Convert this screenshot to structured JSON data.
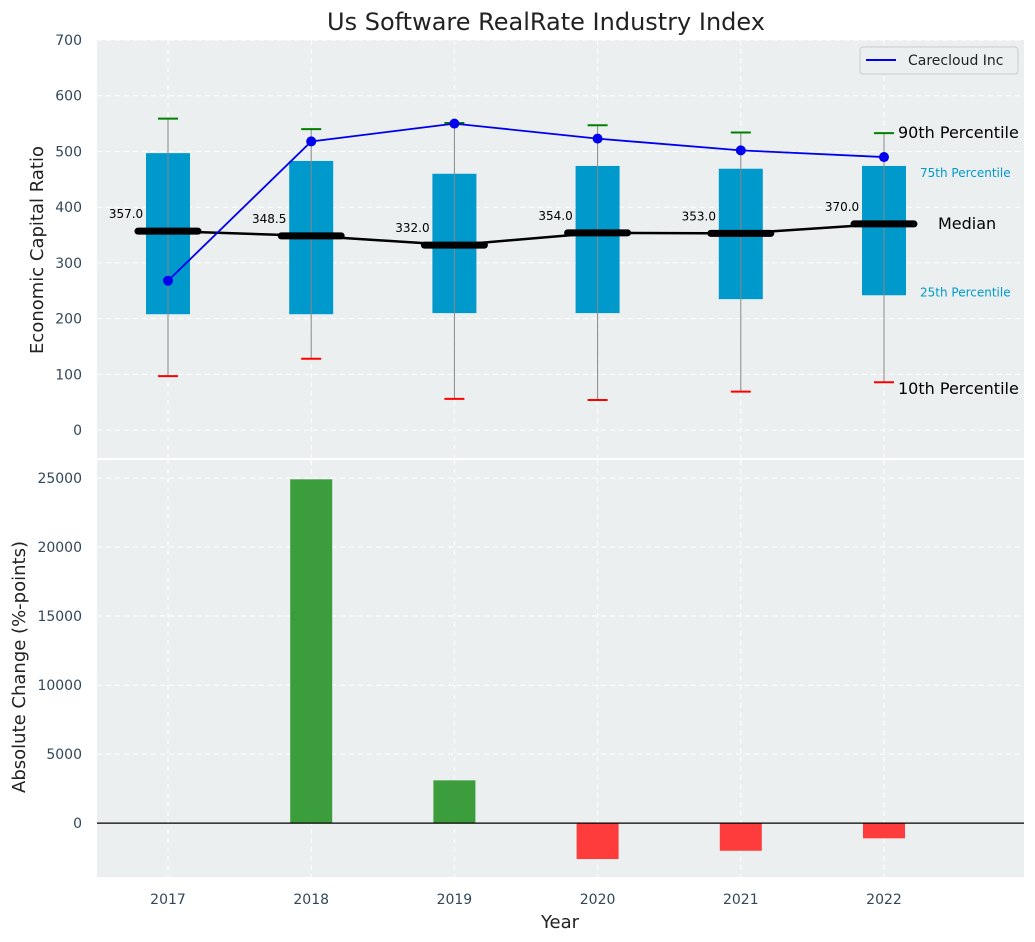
{
  "chart_data": [
    {
      "type": "box",
      "title": "Us Software RealRate Industry Index",
      "ylabel": "Economic Capital Ratio",
      "xlabel": "",
      "categories": [
        "2017",
        "2018",
        "2019",
        "2020",
        "2021",
        "2022"
      ],
      "ylim": [
        -50,
        700
      ],
      "yticks": [
        0,
        100,
        200,
        300,
        400,
        500,
        600,
        700
      ],
      "grid": true,
      "legend_position": "top-right",
      "percentiles": {
        "p10": [
          97,
          128,
          56,
          54,
          69,
          86
        ],
        "p25": [
          208,
          208,
          210,
          210,
          235,
          242
        ],
        "median": [
          357.0,
          348.5,
          332.0,
          354.0,
          353.0,
          370.0
        ],
        "p75": [
          497,
          483,
          460,
          474,
          469,
          474
        ],
        "p90": [
          559,
          540,
          551,
          547,
          534,
          533
        ]
      },
      "median_labels": [
        "357.0",
        "348.5",
        "332.0",
        "354.0",
        "353.0",
        "370.0"
      ],
      "series": [
        {
          "name": "Carecloud Inc",
          "values": [
            268,
            518,
            550,
            523,
            502,
            490
          ],
          "color": "#0000ee"
        }
      ],
      "annotations": {
        "p90": "90th Percentile",
        "p75": "75th Percentile",
        "median": "Median",
        "p25": "25th Percentile",
        "p10": "10th Percentile"
      },
      "colors": {
        "box": "#0099cc",
        "median": "#000000",
        "p90_cap": "#008000",
        "p10_cap": "#ff0000",
        "whisker": "#888888",
        "background": "#ebeff0"
      }
    },
    {
      "type": "bar",
      "ylabel": "Absolute Change (%-points)",
      "xlabel": "Year",
      "categories": [
        "2017",
        "2018",
        "2019",
        "2020",
        "2021",
        "2022"
      ],
      "values": [
        0,
        24900,
        3100,
        -2600,
        -2000,
        -1100
      ],
      "ylim": [
        -3900,
        26300
      ],
      "yticks": [
        0,
        5000,
        10000,
        15000,
        20000,
        25000
      ],
      "grid": true,
      "colors": {
        "positive": "#3c9d3c",
        "negative": "#ff3c3c",
        "zero_line": "#000000"
      }
    }
  ]
}
